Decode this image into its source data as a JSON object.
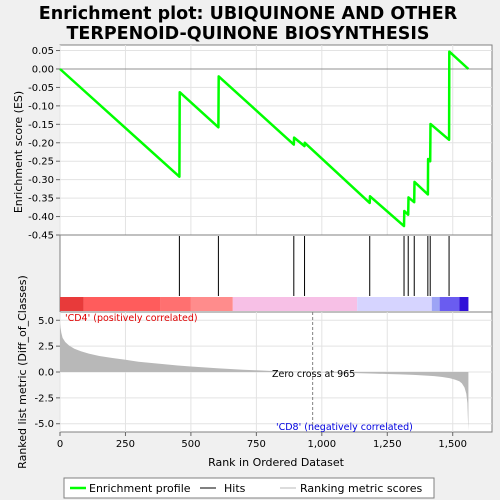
{
  "chart_data": [
    {
      "type": "line",
      "title": "Enrichment plot: UBIQUINONE AND OTHER TERPENOID-QUINONE BIOSYNTHESIS",
      "title_lines": [
        "Enrichment plot: UBIQUINONE AND OTHER",
        "TERPENOID-QUINONE BIOSYNTHESIS"
      ],
      "ylabel": "Enrichment score (ES)",
      "ylim": [
        -0.45,
        0.065
      ],
      "xlim": [
        0,
        1650
      ],
      "yticks": [
        0.05,
        0.0,
        -0.05,
        -0.1,
        -0.15,
        -0.2,
        -0.25,
        -0.3,
        -0.35,
        -0.4,
        -0.45
      ],
      "ytick_labels": [
        "0.05",
        "0.00",
        "-0.05",
        "-0.10",
        "-0.15",
        "-0.20",
        "-0.25",
        "-0.30",
        "-0.35",
        "-0.40",
        "-0.45"
      ],
      "grid": true,
      "series": [
        {
          "name": "Enrichment profile",
          "color": "#00ff00",
          "x": [
            0,
            456,
            457,
            605,
            606,
            893,
            894,
            934,
            935,
            1183,
            1184,
            1314,
            1315,
            1330,
            1331,
            1353,
            1354,
            1405,
            1406,
            1414,
            1415,
            1486,
            1487,
            1560
          ],
          "y": [
            0.0,
            -0.292,
            -0.063,
            -0.158,
            -0.02,
            -0.205,
            -0.186,
            -0.209,
            -0.2,
            -0.363,
            -0.345,
            -0.426,
            -0.385,
            -0.395,
            -0.348,
            -0.361,
            -0.306,
            -0.34,
            -0.244,
            -0.25,
            -0.149,
            -0.192,
            0.047,
            0.0
          ]
        }
      ]
    },
    {
      "type": "hits",
      "name": "Hits",
      "hit_positions": [
        456,
        605,
        893,
        934,
        1183,
        1314,
        1330,
        1353,
        1405,
        1414,
        1486
      ],
      "ranking_bar": [
        {
          "from": 0,
          "to": 90,
          "color": "#e83a3a"
        },
        {
          "from": 90,
          "to": 385,
          "color": "#ff5c5c"
        },
        {
          "from": 385,
          "to": 500,
          "color": "#ff7070"
        },
        {
          "from": 500,
          "to": 660,
          "color": "#ff8c8c"
        },
        {
          "from": 660,
          "to": 1135,
          "color": "#f7c0e6"
        },
        {
          "from": 1135,
          "to": 1420,
          "color": "#d6d4ff"
        },
        {
          "from": 1420,
          "to": 1450,
          "color": "#9da4f5"
        },
        {
          "from": 1450,
          "to": 1525,
          "color": "#6a5cf0"
        },
        {
          "from": 1525,
          "to": 1560,
          "color": "#3010d8"
        }
      ]
    },
    {
      "type": "area",
      "ylabel": "Ranked list metric (Diff_of_Classes)",
      "xlabel": "Rank in Ordered Dataset",
      "ylim": [
        -5.8,
        5.8
      ],
      "xlim": [
        0,
        1650
      ],
      "yticks": [
        5.0,
        2.5,
        0.0,
        -2.5,
        -5.0
      ],
      "ytick_labels": [
        "5.0",
        "2.5",
        "0.0",
        "-2.5",
        "-5.0"
      ],
      "xticks": [
        0,
        250,
        500,
        750,
        1000,
        1250,
        1500
      ],
      "xtick_labels": [
        "0",
        "250",
        "500",
        "750",
        "1,000",
        "1,250",
        "1,500"
      ],
      "grid": true,
      "color": "#b8b8b8",
      "x": [
        0,
        2,
        5,
        10,
        20,
        35,
        55,
        80,
        110,
        150,
        200,
        250,
        300,
        350,
        400,
        450,
        500,
        550,
        600,
        650,
        700,
        750,
        800,
        850,
        900,
        965,
        1000,
        1050,
        1100,
        1150,
        1200,
        1250,
        1300,
        1350,
        1400,
        1430,
        1460,
        1490,
        1510,
        1525,
        1535,
        1545,
        1552,
        1556,
        1558,
        1560
      ],
      "values": [
        4.7,
        4.3,
        3.8,
        3.3,
        2.9,
        2.55,
        2.25,
        2.0,
        1.78,
        1.55,
        1.35,
        1.18,
        1.0,
        0.87,
        0.75,
        0.63,
        0.53,
        0.44,
        0.36,
        0.29,
        0.22,
        0.16,
        0.11,
        0.07,
        0.03,
        0.0,
        -0.03,
        -0.06,
        -0.09,
        -0.12,
        -0.15,
        -0.19,
        -0.23,
        -0.28,
        -0.35,
        -0.4,
        -0.48,
        -0.6,
        -0.75,
        -0.9,
        -1.1,
        -1.5,
        -2.1,
        -3.0,
        -4.5,
        -5.7
      ],
      "zero_cross": 965,
      "zero_cross_label": "Zero cross at 965",
      "positive_label": "'CD4' (positively correlated)",
      "positive_color": "#e00000",
      "negative_label": "'CD8' (negatively correlated)",
      "negative_color": "#0000e0"
    }
  ],
  "legend": {
    "placement": "bottom",
    "entries": [
      {
        "label": "Enrichment profile",
        "color": "#00ff00"
      },
      {
        "label": "Hits",
        "color": "#000000"
      },
      {
        "label": "Ranking metric scores",
        "color": "#b8b8b8"
      }
    ]
  }
}
